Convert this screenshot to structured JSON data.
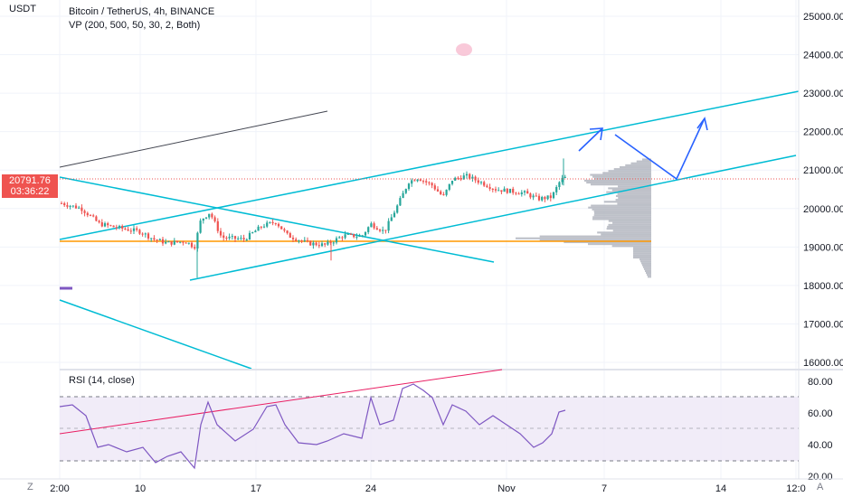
{
  "window": {
    "symbol_title": "Bitcoin / TetherUS, 4h, BINANCE",
    "indicator_vp": "VP (200, 500, 50, 30, 2, Both)",
    "indicator_rsi": "RSI (14, close)",
    "currency_label": "USDT",
    "last_price": "20791.76",
    "countdown": "03:36:22",
    "zoom_icon": "Z",
    "auto_label": "A"
  },
  "colors": {
    "up": "#26a69a",
    "down": "#ef5350",
    "channel": "#00bcd4",
    "volume_profile": "#b2b5be",
    "poc": "#ff9800",
    "arrows": "#2962ff",
    "rsi_line": "#7e57c2",
    "rsi_band": "#ede7f6",
    "rsi_trend": "#e91e63",
    "dark_trend": "#434651"
  },
  "chart_data": [
    {
      "type": "candlestick",
      "title": "Bitcoin / TetherUS, 4h, BINANCE",
      "y_ticks": [
        "16000.00",
        "17000.00",
        "18000.00",
        "19000.00",
        "20000.00",
        "21000.00",
        "22000.00",
        "23000.00",
        "24000.00",
        "25000.00"
      ],
      "ylim": [
        15800,
        25200
      ],
      "x_ticks": [
        "2:00",
        "10",
        "17",
        "24",
        "Nov",
        "7",
        "14",
        "12:0"
      ],
      "last_price": 20791.76,
      "approx_levels": {
        "poc": 19200,
        "range_low": 18200,
        "range_high": 21300
      }
    },
    {
      "type": "line",
      "title": "RSI (14, close)",
      "y_ticks": [
        "20.00",
        "40.00",
        "60.00",
        "80.00"
      ],
      "ylim": [
        17,
        87
      ],
      "bands": [
        30,
        50,
        70
      ]
    }
  ],
  "icons": [
    "zoom-icon",
    "auto-scale-icon"
  ]
}
